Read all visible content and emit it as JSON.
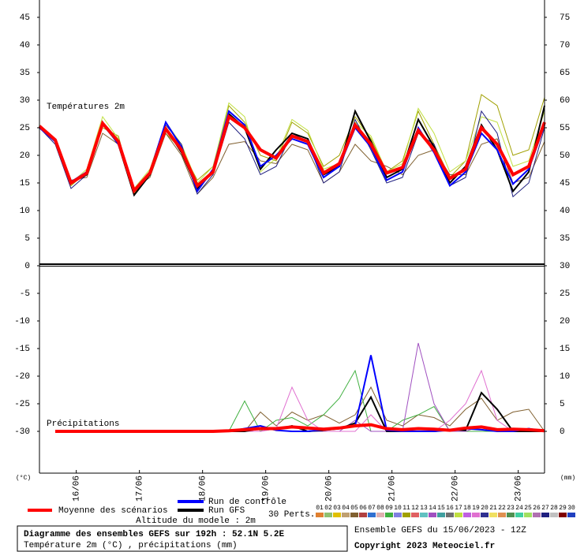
{
  "chart_data": {
    "type": "line",
    "title": "Diagramme des ensembles GEFS sur 192h : 52.1N 5.2E",
    "subtitle": "Température 2m (°C) , précipitations (mm)",
    "run_info": "Ensemble GEFS du 15/06/2023 - 12Z",
    "copyright": "Copyright 2023 Meteociel.fr",
    "altitude": "Altitude du modele : 2m",
    "temperature_label": "Températures 2m",
    "precipitation_label": "Précipitations",
    "y_unit": "(°C)",
    "y2_unit": "(mm)",
    "x": [
      0,
      6,
      12,
      18,
      24,
      30,
      36,
      42,
      48,
      54,
      60,
      66,
      72,
      78,
      84,
      90,
      96,
      102,
      108,
      114,
      120,
      126,
      132,
      138,
      144,
      150,
      156,
      162,
      168,
      174,
      180,
      186,
      192
    ],
    "xlim": [
      0,
      192
    ],
    "xticks": [
      {
        "value": 14,
        "label": "16/06"
      },
      {
        "value": 38,
        "label": "17/06"
      },
      {
        "value": 62,
        "label": "18/06"
      },
      {
        "value": 86,
        "label": "19/06"
      },
      {
        "value": 110,
        "label": "20/06"
      },
      {
        "value": 134,
        "label": "21/06"
      },
      {
        "value": 158,
        "label": "22/06"
      },
      {
        "value": 182,
        "label": "23/06"
      }
    ],
    "ylim": [
      -37.57,
      48.14
    ],
    "yticks": [
      45,
      40,
      35,
      30,
      25,
      20,
      15,
      10,
      5,
      0,
      -5,
      -10,
      -15,
      -20,
      -25,
      -30
    ],
    "y2lim": [
      -7.57,
      78.14
    ],
    "y2ticks": [
      75,
      70,
      65,
      60,
      55,
      50,
      45,
      40,
      35,
      30,
      25,
      20,
      15,
      10,
      5,
      0
    ],
    "perturbations_label": "30 Perts.",
    "perturbations": [
      {
        "name": "01",
        "color": "#e08030"
      },
      {
        "name": "02",
        "color": "#90c070"
      },
      {
        "name": "03",
        "color": "#e0c000"
      },
      {
        "name": "04",
        "color": "#c0a070"
      },
      {
        "name": "05",
        "color": "#806030"
      },
      {
        "name": "06",
        "color": "#b04040"
      },
      {
        "name": "07",
        "color": "#3070d0"
      },
      {
        "name": "08",
        "color": "#e0b0b0"
      },
      {
        "name": "09",
        "color": "#40b040"
      },
      {
        "name": "10",
        "color": "#8080e0"
      },
      {
        "name": "11",
        "color": "#a0a000"
      },
      {
        "name": "12",
        "color": "#e06060"
      },
      {
        "name": "13",
        "color": "#60c0c0"
      },
      {
        "name": "14",
        "color": "#a050c0"
      },
      {
        "name": "15",
        "color": "#40a0a0"
      },
      {
        "name": "16",
        "color": "#707070"
      },
      {
        "name": "17",
        "color": "#c0e040"
      },
      {
        "name": "18",
        "color": "#c060e0"
      },
      {
        "name": "19",
        "color": "#e070d0"
      },
      {
        "name": "20",
        "color": "#303090"
      },
      {
        "name": "21",
        "color": "#f0e060"
      },
      {
        "name": "22",
        "color": "#e09050"
      },
      {
        "name": "23",
        "color": "#509050"
      },
      {
        "name": "24",
        "color": "#40d0a0"
      },
      {
        "name": "25",
        "color": "#a0e060"
      },
      {
        "name": "26",
        "color": "#b070b0"
      },
      {
        "name": "27",
        "color": "#202080"
      },
      {
        "name": "28",
        "color": "#c0c0c0"
      },
      {
        "name": "29",
        "color": "#800000"
      },
      {
        "name": "30",
        "color": "#2040c0"
      }
    ],
    "series": [
      {
        "name": "11",
        "color": "#a0a000",
        "values": [
          25.5,
          23.0,
          14.5,
          17.0,
          25.0,
          23.5,
          13.0,
          17.0,
          24.0,
          21.0,
          15.5,
          18.0,
          29.0,
          26.0,
          20.0,
          19.0,
          26.0,
          24.0,
          18.0,
          20.0,
          27.0,
          23.0,
          17.0,
          19.0,
          28.0,
          22.0,
          16.0,
          19.0,
          31.0,
          29.0,
          20.0,
          21.0,
          30.5
        ]
      },
      {
        "name": "05",
        "color": "#806030",
        "values": [
          25.0,
          22.5,
          15.5,
          16.0,
          24.0,
          22.0,
          14.0,
          16.0,
          24.0,
          20.0,
          13.0,
          16.0,
          22.0,
          22.5,
          19.0,
          18.5,
          22.0,
          21.0,
          15.0,
          17.0,
          22.0,
          19.0,
          18.0,
          16.5,
          20.0,
          21.0,
          16.5,
          16.5,
          22.0,
          23.0,
          15.0,
          16.0,
          22.5
        ]
      },
      {
        "name": "17",
        "color": "#c0e040",
        "values": [
          25.5,
          23.0,
          15.0,
          17.5,
          27.0,
          23.0,
          14.0,
          17.5,
          26.0,
          22.0,
          15.0,
          18.0,
          29.5,
          27.0,
          17.0,
          19.5,
          26.5,
          24.5,
          17.5,
          18.5,
          26.0,
          23.5,
          17.0,
          18.5,
          28.5,
          24.0,
          17.0,
          19.0,
          27.0,
          26.0,
          18.0,
          19.0,
          28.0
        ]
      },
      {
        "name": "27",
        "color": "#202080",
        "values": [
          25.0,
          22.0,
          14.0,
          16.5,
          25.5,
          22.0,
          13.5,
          16.5,
          25.5,
          22.0,
          13.0,
          16.5,
          26.0,
          23.0,
          16.5,
          18.0,
          24.0,
          22.5,
          15.0,
          17.0,
          26.5,
          21.0,
          15.0,
          16.0,
          24.0,
          22.0,
          14.5,
          16.0,
          28.0,
          24.0,
          12.5,
          15.0,
          25.0
        ]
      },
      {
        "name": "Run GFS",
        "color": "#000000",
        "values": [
          25.0,
          22.8,
          15.0,
          16.5,
          26.0,
          22.0,
          12.8,
          16.5,
          25.0,
          20.5,
          14.0,
          17.0,
          27.5,
          25.0,
          17.5,
          21.0,
          24.0,
          23.0,
          16.5,
          18.0,
          28.0,
          22.5,
          16.0,
          17.5,
          26.5,
          21.5,
          15.0,
          18.0,
          25.5,
          21.0,
          13.5,
          17.0,
          29.0
        ]
      },
      {
        "name": "Run de contrôle",
        "color": "#0000ff",
        "values": [
          25.0,
          22.5,
          15.2,
          17.0,
          26.0,
          22.0,
          13.8,
          17.0,
          26.0,
          21.5,
          13.5,
          17.5,
          28.0,
          25.5,
          18.0,
          20.0,
          23.0,
          22.0,
          16.0,
          18.0,
          25.0,
          21.5,
          15.5,
          17.0,
          25.0,
          20.5,
          14.5,
          17.0,
          24.0,
          21.0,
          14.8,
          17.5,
          25.5
        ]
      },
      {
        "name": "Moyenne des scénarios",
        "color": "#ff0000",
        "values": [
          25.3,
          22.8,
          15.0,
          16.8,
          25.8,
          22.5,
          13.6,
          16.8,
          24.8,
          21.0,
          14.5,
          17.0,
          27.0,
          25.0,
          21.0,
          19.5,
          23.5,
          22.5,
          16.8,
          18.5,
          25.5,
          22.0,
          16.8,
          17.8,
          24.5,
          21.0,
          15.8,
          17.5,
          25.0,
          22.0,
          16.5,
          18.0,
          26.0
        ]
      },
      {
        "name": "05",
        "color": "#806030",
        "axis": "y2",
        "values": [
          null,
          0,
          0,
          0,
          0,
          0,
          0,
          0,
          0,
          0,
          0,
          0,
          0,
          0,
          3.5,
          1.0,
          3.5,
          2.0,
          3.0,
          1.5,
          3.0,
          8.0,
          2.0,
          1.0,
          3.0,
          2.5,
          1.0,
          4.0,
          6.0,
          2.0,
          3.5,
          4.0,
          0
        ]
      },
      {
        "name": "09",
        "color": "#40b040",
        "axis": "y2",
        "values": [
          null,
          0,
          0,
          0,
          0,
          0,
          0,
          0,
          0,
          0,
          0,
          0,
          0,
          5.5,
          0,
          2.0,
          2.5,
          1.0,
          3.0,
          6.0,
          11.0,
          0,
          0,
          2.0,
          3.0,
          4.5,
          0,
          0,
          0,
          0,
          0,
          0,
          0
        ]
      },
      {
        "name": "14",
        "color": "#a050c0",
        "axis": "y2",
        "values": [
          null,
          0,
          0,
          0,
          0,
          0,
          0,
          0,
          0,
          0,
          0,
          0,
          0,
          0,
          0,
          0.5,
          1.0,
          0,
          0,
          0,
          2.0,
          0,
          0,
          0,
          16.0,
          5.0,
          0,
          0,
          1.0,
          0,
          0,
          0,
          0
        ]
      },
      {
        "name": "19",
        "color": "#e070d0",
        "axis": "y2",
        "values": [
          null,
          0,
          0,
          0,
          0,
          0,
          0,
          0,
          0,
          0,
          0,
          0,
          0,
          0,
          0,
          0.5,
          8.0,
          2.0,
          0,
          0,
          0,
          3.0,
          0,
          0,
          0,
          0,
          2.0,
          5.0,
          11.0,
          2.0,
          0,
          0,
          0
        ]
      },
      {
        "name": "Run GFS",
        "color": "#000000",
        "axis": "y2",
        "values": [
          null,
          0,
          0,
          0,
          0,
          0,
          0,
          0,
          0,
          0,
          0,
          0,
          0,
          0,
          0.5,
          0.3,
          1.0,
          0,
          0.2,
          0.5,
          1.5,
          6.2,
          0,
          0,
          0,
          0,
          0.3,
          0.2,
          7.0,
          4.0,
          0,
          0,
          0
        ]
      },
      {
        "name": "Run de contrôle",
        "color": "#0000ff",
        "axis": "y2",
        "values": [
          null,
          0,
          0,
          0,
          0,
          0,
          0,
          0,
          0,
          0,
          0,
          0,
          0,
          0.5,
          1.0,
          0.2,
          0,
          0,
          0.3,
          0.5,
          1.0,
          13.8,
          0.2,
          0,
          0,
          0,
          0.2,
          0.5,
          0.3,
          0,
          0,
          0.5,
          0
        ]
      },
      {
        "name": "Moyenne des scénarios",
        "color": "#ff0000",
        "axis": "y2",
        "values": [
          null,
          0,
          0,
          0,
          0,
          0,
          0,
          0,
          0,
          0,
          0,
          0,
          0.1,
          0.3,
          0.5,
          0.5,
          0.8,
          0.6,
          0.4,
          0.6,
          1.0,
          1.2,
          0.5,
          0.3,
          0.5,
          0.4,
          0.2,
          0.6,
          0.8,
          0.3,
          0.4,
          0.3,
          0.1
        ]
      }
    ]
  }
}
